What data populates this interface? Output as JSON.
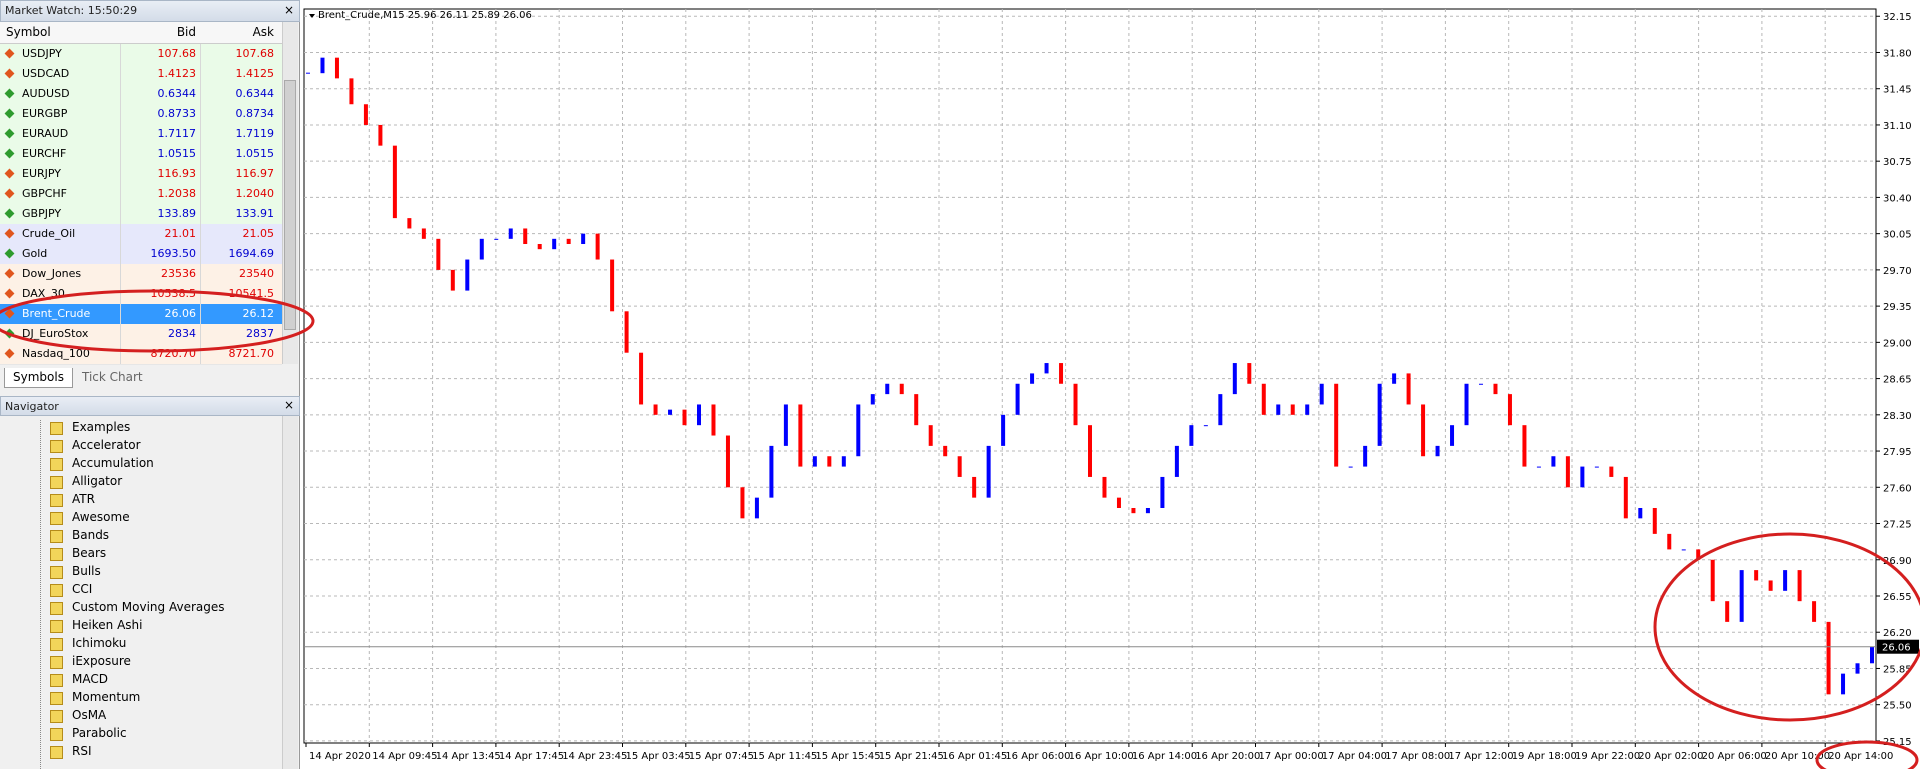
{
  "market_watch": {
    "title": "Market Watch: 15:50:29",
    "headers": [
      "Symbol",
      "Bid",
      "Ask"
    ],
    "rows": [
      {
        "symbol": "USDJPY",
        "bid": "107.68",
        "ask": "107.68",
        "color": "red",
        "group": "fx"
      },
      {
        "symbol": "USDCAD",
        "bid": "1.4123",
        "ask": "1.4125",
        "color": "red",
        "group": "fx"
      },
      {
        "symbol": "AUDUSD",
        "bid": "0.6344",
        "ask": "0.6344",
        "color": "blue",
        "group": "fx"
      },
      {
        "symbol": "EURGBP",
        "bid": "0.8733",
        "ask": "0.8734",
        "color": "blue",
        "group": "fx"
      },
      {
        "symbol": "EURAUD",
        "bid": "1.7117",
        "ask": "1.7119",
        "color": "blue",
        "group": "fx"
      },
      {
        "symbol": "EURCHF",
        "bid": "1.0515",
        "ask": "1.0515",
        "color": "blue",
        "group": "fx"
      },
      {
        "symbol": "EURJPY",
        "bid": "116.93",
        "ask": "116.97",
        "color": "red",
        "group": "fx"
      },
      {
        "symbol": "GBPCHF",
        "bid": "1.2038",
        "ask": "1.2040",
        "color": "red",
        "group": "fx"
      },
      {
        "symbol": "GBPJPY",
        "bid": "133.89",
        "ask": "133.91",
        "color": "blue",
        "group": "fx"
      },
      {
        "symbol": "Crude_Oil",
        "bid": "21.01",
        "ask": "21.05",
        "color": "red",
        "group": "commodity"
      },
      {
        "symbol": "Gold",
        "bid": "1693.50",
        "ask": "1694.69",
        "color": "blue",
        "group": "commodity"
      },
      {
        "symbol": "Dow_Jones",
        "bid": "23536",
        "ask": "23540",
        "color": "red",
        "group": "index"
      },
      {
        "symbol": "DAX_30",
        "bid": "10538.5",
        "ask": "10541.5",
        "color": "red",
        "group": "index"
      },
      {
        "symbol": "Brent_Crude",
        "bid": "26.06",
        "ask": "26.12",
        "color": "white",
        "group": "selected"
      },
      {
        "symbol": "DJ_EuroStox",
        "bid": "2834",
        "ask": "2837",
        "color": "blue",
        "group": "index"
      },
      {
        "symbol": "Nasdaq_100",
        "bid": "8720.70",
        "ask": "8721.70",
        "color": "red",
        "group": "index"
      }
    ],
    "tabs": [
      "Symbols",
      "Tick Chart"
    ]
  },
  "navigator": {
    "title": "Navigator",
    "items": [
      "Examples",
      "Accelerator",
      "Accumulation",
      "Alligator",
      "ATR",
      "Awesome",
      "Bands",
      "Bears",
      "Bulls",
      "CCI",
      "Custom Moving Averages",
      "Heiken Ashi",
      "Ichimoku",
      "iExposure",
      "MACD",
      "Momentum",
      "OsMA",
      "Parabolic",
      "RSI"
    ]
  },
  "chart_data": {
    "type": "candlestick",
    "title": "Brent_Crude,M15  25.96 26.11 25.89 26.06",
    "up_color": "#0000ff",
    "down_color": "#ff0000",
    "grid": true,
    "last_price": 26.06,
    "ylim": [
      25.13,
      32.22
    ],
    "yticks": [
      {
        "value": 32.15,
        "label": "32.15"
      },
      {
        "value": 31.8,
        "label": "31.80"
      },
      {
        "value": 31.45,
        "label": "31.45"
      },
      {
        "value": 31.1,
        "label": "31.10"
      },
      {
        "value": 30.75,
        "label": "30.75"
      },
      {
        "value": 30.4,
        "label": "30.40"
      },
      {
        "value": 30.05,
        "label": "30.05"
      },
      {
        "value": 29.7,
        "label": "29.70"
      },
      {
        "value": 29.35,
        "label": "29.35"
      },
      {
        "value": 29.0,
        "label": "29.00"
      },
      {
        "value": 28.65,
        "label": "28.65"
      },
      {
        "value": 28.3,
        "label": "28.30"
      },
      {
        "value": 27.95,
        "label": "27.95"
      },
      {
        "value": 27.6,
        "label": "27.60"
      },
      {
        "value": 27.25,
        "label": "27.25"
      },
      {
        "value": 26.9,
        "label": "26.90"
      },
      {
        "value": 26.55,
        "label": "26.55"
      },
      {
        "value": 26.2,
        "label": "26.20"
      },
      {
        "value": 25.85,
        "label": "25.85"
      },
      {
        "value": 25.5,
        "label": "25.50"
      },
      {
        "value": 25.15,
        "label": "25.15"
      }
    ],
    "x_labels": [
      "14 Apr 2020",
      "14 Apr 09:45",
      "14 Apr 13:45",
      "14 Apr 17:45",
      "14 Apr 23:45",
      "15 Apr 03:45",
      "15 Apr 07:45",
      "15 Apr 11:45",
      "15 Apr 15:45",
      "15 Apr 21:45",
      "16 Apr 01:45",
      "16 Apr 06:00",
      "16 Apr 10:00",
      "16 Apr 14:00",
      "16 Apr 20:00",
      "17 Apr 00:00",
      "17 Apr 04:00",
      "17 Apr 08:00",
      "17 Apr 12:00",
      "19 Apr 18:00",
      "19 Apr 22:00",
      "20 Apr 02:00",
      "20 Apr 06:00",
      "20 Apr 10:00",
      "20 Apr 14:00"
    ],
    "values": [
      31.6,
      31.75,
      31.55,
      31.3,
      31.1,
      30.9,
      30.2,
      30.1,
      30.0,
      29.7,
      29.5,
      29.8,
      30.0,
      30.0,
      30.1,
      29.95,
      29.9,
      30.0,
      29.95,
      30.05,
      29.8,
      29.3,
      28.9,
      28.4,
      28.3,
      28.35,
      28.2,
      28.4,
      28.1,
      27.6,
      27.3,
      27.5,
      28.0,
      28.4,
      27.8,
      27.9,
      27.8,
      27.9,
      28.4,
      28.5,
      28.6,
      28.5,
      28.2,
      28.0,
      27.9,
      27.7,
      27.5,
      28.0,
      28.3,
      28.6,
      28.7,
      28.8,
      28.6,
      28.2,
      27.7,
      27.5,
      27.4,
      27.35,
      27.4,
      27.7,
      28.0,
      28.2,
      28.2,
      28.5,
      28.8,
      28.6,
      28.3,
      28.4,
      28.3,
      28.4,
      28.6,
      27.8,
      27.8,
      28.0,
      28.6,
      28.7,
      28.4,
      27.9,
      28.0,
      28.2,
      28.6,
      28.6,
      28.5,
      28.2,
      27.8,
      27.8,
      27.9,
      27.6,
      27.8,
      27.8,
      27.7,
      27.3,
      27.4,
      27.15,
      27.0,
      27.0,
      26.9,
      26.5,
      26.3,
      26.8,
      26.7,
      26.6,
      26.8,
      26.5,
      26.3,
      25.6,
      25.8,
      25.9,
      26.06
    ]
  }
}
